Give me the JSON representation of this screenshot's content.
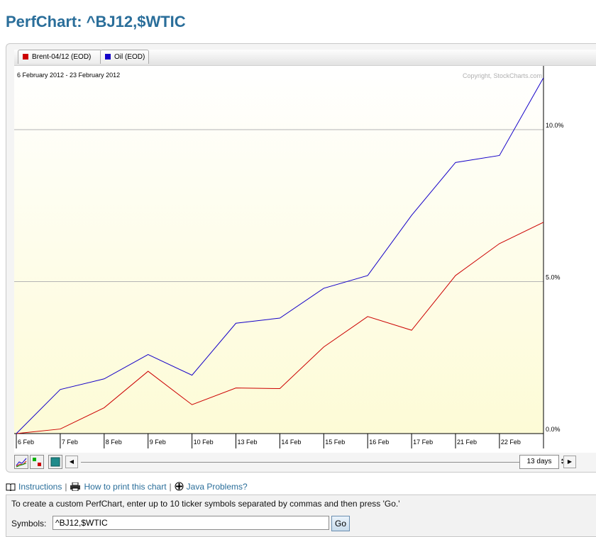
{
  "page": {
    "title": "PerfChart: ^BJ12,$WTIC"
  },
  "legend": [
    {
      "label": "Brent-04/12 (EOD)",
      "color": "#cc0000"
    },
    {
      "label": "Oil (EOD)",
      "color": "#1400c8"
    }
  ],
  "chart_data": {
    "type": "line",
    "date_range": "6 February 2012 - 23 February 2012",
    "copyright": "Copyright, StockCharts.com",
    "x": [
      "6 Feb",
      "7 Feb",
      "8 Feb",
      "9 Feb",
      "10 Feb",
      "13 Feb",
      "14 Feb",
      "15 Feb",
      "16 Feb",
      "17 Feb",
      "21 Feb",
      "22 Feb",
      "23 Feb"
    ],
    "x_tick_labels": [
      "6 Feb",
      "7 Feb",
      "8 Feb",
      "9 Feb",
      "10 Feb",
      "13 Feb",
      "14 Feb",
      "15 Feb",
      "16 Feb",
      "17 Feb",
      "21 Feb",
      "22 Feb"
    ],
    "y_ticks": [
      {
        "value": 0,
        "label": "0.0%"
      },
      {
        "value": 5,
        "label": "5.0%"
      },
      {
        "value": 10,
        "label": "10.0%"
      }
    ],
    "ylim": [
      0,
      11.7
    ],
    "series": [
      {
        "name": "Brent-04/12 (EOD)",
        "color": "#cc0000",
        "values": [
          0,
          0.15,
          0.85,
          2.05,
          0.95,
          1.5,
          1.48,
          2.85,
          3.85,
          3.4,
          5.2,
          6.25,
          6.95
        ]
      },
      {
        "name": "Oil (EOD)",
        "color": "#1400c8",
        "values": [
          0,
          1.45,
          1.8,
          2.6,
          1.92,
          3.63,
          3.8,
          4.78,
          5.2,
          7.18,
          8.92,
          9.15,
          11.7
        ]
      }
    ]
  },
  "toolbar": {
    "days": "13 days",
    "scroll_left": "◀",
    "scroll_right": "▶",
    "days_up": "▲",
    "days_down": "▼"
  },
  "links": {
    "instructions": "Instructions",
    "print": "How to print this chart",
    "java": "Java Problems?",
    "separator": "|"
  },
  "form": {
    "instructions": "To create a custom PerfChart, enter up to 10 ticker symbols separated by commas and then press 'Go.'",
    "symbols_label": "Symbols:",
    "symbols_value": "^BJ12,$WTIC",
    "go_label": "Go"
  }
}
